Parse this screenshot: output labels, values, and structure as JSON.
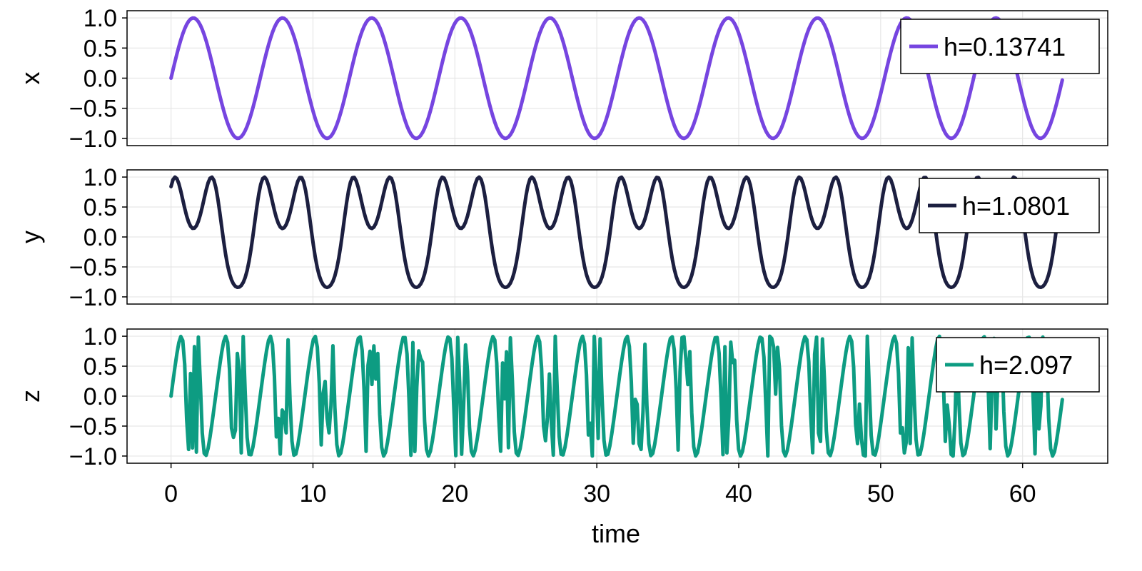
{
  "chart_data": {
    "type": "line",
    "xlabel": "time",
    "x_ticks": [
      0,
      10,
      20,
      30,
      40,
      50,
      60
    ],
    "x_tick_labels": [
      "0",
      "10",
      "20",
      "30",
      "40",
      "50",
      "60"
    ],
    "xlim": [
      -3.1,
      66.0
    ],
    "x_range": [
      0,
      62.8
    ],
    "samples": 458,
    "grid": true,
    "legend_position": "top-right",
    "panels": [
      {
        "ylabel": "x",
        "ylim": [
          -1.12,
          1.12
        ],
        "y_ticks": [
          1.0,
          0.5,
          0.0,
          -0.5,
          -1.0
        ],
        "y_tick_labels": [
          "1.0",
          "0.5",
          "0.0",
          "−0.5",
          "−1.0"
        ],
        "series": [
          {
            "name": "h=0.13741",
            "color": "#7645e0",
            "formula": "sin(t)"
          }
        ]
      },
      {
        "ylabel": "y",
        "ylim": [
          -1.12,
          1.12
        ],
        "y_ticks": [
          1.0,
          0.5,
          0.0,
          -0.5,
          -1.0
        ],
        "y_tick_labels": [
          "1.0",
          "0.5",
          "0.0",
          "−0.5",
          "−1.0"
        ],
        "series": [
          {
            "name": "h=1.0801",
            "color": "#1c1f40",
            "formula": "sin(2*sin(t)+1)"
          }
        ]
      },
      {
        "ylabel": "z",
        "ylim": [
          -1.12,
          1.12
        ],
        "y_ticks": [
          1.0,
          0.5,
          0.0,
          -0.5,
          -1.0
        ],
        "y_tick_labels": [
          "1.0",
          "0.5",
          "0.0",
          "−0.5",
          "−1.0"
        ],
        "series": [
          {
            "name": "h=2.097",
            "color": "#0d9c82",
            "formula": "sin(1.8*tan(t))"
          }
        ]
      }
    ]
  }
}
